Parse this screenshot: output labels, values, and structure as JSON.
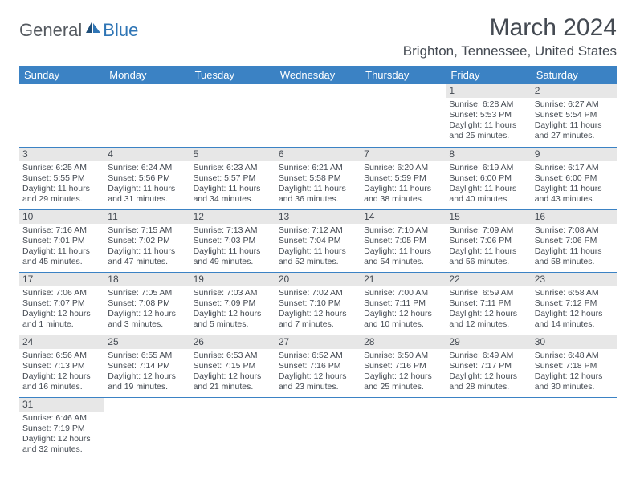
{
  "logo": {
    "word1": "General",
    "word2": "Blue"
  },
  "title": "March 2024",
  "location": "Brighton, Tennessee, United States",
  "colors": {
    "header_bg": "#3b82c4",
    "header_text": "#ffffff",
    "daynum_bg": "#e7e7e7",
    "text": "#444a52",
    "rule": "#3b82c4",
    "logo_blue": "#2f75b5",
    "logo_gray": "#555a60"
  },
  "typography": {
    "title_fontsize": 30,
    "location_fontsize": 17,
    "weekday_fontsize": 13,
    "cell_fontsize": 10.5,
    "daynum_fontsize": 12
  },
  "weekdays": [
    "Sunday",
    "Monday",
    "Tuesday",
    "Wednesday",
    "Thursday",
    "Friday",
    "Saturday"
  ],
  "weeks": [
    [
      {
        "day": "",
        "sunrise": "",
        "sunset": "",
        "daylight": ""
      },
      {
        "day": "",
        "sunrise": "",
        "sunset": "",
        "daylight": ""
      },
      {
        "day": "",
        "sunrise": "",
        "sunset": "",
        "daylight": ""
      },
      {
        "day": "",
        "sunrise": "",
        "sunset": "",
        "daylight": ""
      },
      {
        "day": "",
        "sunrise": "",
        "sunset": "",
        "daylight": ""
      },
      {
        "day": "1",
        "sunrise": "Sunrise: 6:28 AM",
        "sunset": "Sunset: 5:53 PM",
        "daylight": "Daylight: 11 hours and 25 minutes."
      },
      {
        "day": "2",
        "sunrise": "Sunrise: 6:27 AM",
        "sunset": "Sunset: 5:54 PM",
        "daylight": "Daylight: 11 hours and 27 minutes."
      }
    ],
    [
      {
        "day": "3",
        "sunrise": "Sunrise: 6:25 AM",
        "sunset": "Sunset: 5:55 PM",
        "daylight": "Daylight: 11 hours and 29 minutes."
      },
      {
        "day": "4",
        "sunrise": "Sunrise: 6:24 AM",
        "sunset": "Sunset: 5:56 PM",
        "daylight": "Daylight: 11 hours and 31 minutes."
      },
      {
        "day": "5",
        "sunrise": "Sunrise: 6:23 AM",
        "sunset": "Sunset: 5:57 PM",
        "daylight": "Daylight: 11 hours and 34 minutes."
      },
      {
        "day": "6",
        "sunrise": "Sunrise: 6:21 AM",
        "sunset": "Sunset: 5:58 PM",
        "daylight": "Daylight: 11 hours and 36 minutes."
      },
      {
        "day": "7",
        "sunrise": "Sunrise: 6:20 AM",
        "sunset": "Sunset: 5:59 PM",
        "daylight": "Daylight: 11 hours and 38 minutes."
      },
      {
        "day": "8",
        "sunrise": "Sunrise: 6:19 AM",
        "sunset": "Sunset: 6:00 PM",
        "daylight": "Daylight: 11 hours and 40 minutes."
      },
      {
        "day": "9",
        "sunrise": "Sunrise: 6:17 AM",
        "sunset": "Sunset: 6:00 PM",
        "daylight": "Daylight: 11 hours and 43 minutes."
      }
    ],
    [
      {
        "day": "10",
        "sunrise": "Sunrise: 7:16 AM",
        "sunset": "Sunset: 7:01 PM",
        "daylight": "Daylight: 11 hours and 45 minutes."
      },
      {
        "day": "11",
        "sunrise": "Sunrise: 7:15 AM",
        "sunset": "Sunset: 7:02 PM",
        "daylight": "Daylight: 11 hours and 47 minutes."
      },
      {
        "day": "12",
        "sunrise": "Sunrise: 7:13 AM",
        "sunset": "Sunset: 7:03 PM",
        "daylight": "Daylight: 11 hours and 49 minutes."
      },
      {
        "day": "13",
        "sunrise": "Sunrise: 7:12 AM",
        "sunset": "Sunset: 7:04 PM",
        "daylight": "Daylight: 11 hours and 52 minutes."
      },
      {
        "day": "14",
        "sunrise": "Sunrise: 7:10 AM",
        "sunset": "Sunset: 7:05 PM",
        "daylight": "Daylight: 11 hours and 54 minutes."
      },
      {
        "day": "15",
        "sunrise": "Sunrise: 7:09 AM",
        "sunset": "Sunset: 7:06 PM",
        "daylight": "Daylight: 11 hours and 56 minutes."
      },
      {
        "day": "16",
        "sunrise": "Sunrise: 7:08 AM",
        "sunset": "Sunset: 7:06 PM",
        "daylight": "Daylight: 11 hours and 58 minutes."
      }
    ],
    [
      {
        "day": "17",
        "sunrise": "Sunrise: 7:06 AM",
        "sunset": "Sunset: 7:07 PM",
        "daylight": "Daylight: 12 hours and 1 minute."
      },
      {
        "day": "18",
        "sunrise": "Sunrise: 7:05 AM",
        "sunset": "Sunset: 7:08 PM",
        "daylight": "Daylight: 12 hours and 3 minutes."
      },
      {
        "day": "19",
        "sunrise": "Sunrise: 7:03 AM",
        "sunset": "Sunset: 7:09 PM",
        "daylight": "Daylight: 12 hours and 5 minutes."
      },
      {
        "day": "20",
        "sunrise": "Sunrise: 7:02 AM",
        "sunset": "Sunset: 7:10 PM",
        "daylight": "Daylight: 12 hours and 7 minutes."
      },
      {
        "day": "21",
        "sunrise": "Sunrise: 7:00 AM",
        "sunset": "Sunset: 7:11 PM",
        "daylight": "Daylight: 12 hours and 10 minutes."
      },
      {
        "day": "22",
        "sunrise": "Sunrise: 6:59 AM",
        "sunset": "Sunset: 7:11 PM",
        "daylight": "Daylight: 12 hours and 12 minutes."
      },
      {
        "day": "23",
        "sunrise": "Sunrise: 6:58 AM",
        "sunset": "Sunset: 7:12 PM",
        "daylight": "Daylight: 12 hours and 14 minutes."
      }
    ],
    [
      {
        "day": "24",
        "sunrise": "Sunrise: 6:56 AM",
        "sunset": "Sunset: 7:13 PM",
        "daylight": "Daylight: 12 hours and 16 minutes."
      },
      {
        "day": "25",
        "sunrise": "Sunrise: 6:55 AM",
        "sunset": "Sunset: 7:14 PM",
        "daylight": "Daylight: 12 hours and 19 minutes."
      },
      {
        "day": "26",
        "sunrise": "Sunrise: 6:53 AM",
        "sunset": "Sunset: 7:15 PM",
        "daylight": "Daylight: 12 hours and 21 minutes."
      },
      {
        "day": "27",
        "sunrise": "Sunrise: 6:52 AM",
        "sunset": "Sunset: 7:16 PM",
        "daylight": "Daylight: 12 hours and 23 minutes."
      },
      {
        "day": "28",
        "sunrise": "Sunrise: 6:50 AM",
        "sunset": "Sunset: 7:16 PM",
        "daylight": "Daylight: 12 hours and 25 minutes."
      },
      {
        "day": "29",
        "sunrise": "Sunrise: 6:49 AM",
        "sunset": "Sunset: 7:17 PM",
        "daylight": "Daylight: 12 hours and 28 minutes."
      },
      {
        "day": "30",
        "sunrise": "Sunrise: 6:48 AM",
        "sunset": "Sunset: 7:18 PM",
        "daylight": "Daylight: 12 hours and 30 minutes."
      }
    ],
    [
      {
        "day": "31",
        "sunrise": "Sunrise: 6:46 AM",
        "sunset": "Sunset: 7:19 PM",
        "daylight": "Daylight: 12 hours and 32 minutes."
      },
      {
        "day": "",
        "sunrise": "",
        "sunset": "",
        "daylight": ""
      },
      {
        "day": "",
        "sunrise": "",
        "sunset": "",
        "daylight": ""
      },
      {
        "day": "",
        "sunrise": "",
        "sunset": "",
        "daylight": ""
      },
      {
        "day": "",
        "sunrise": "",
        "sunset": "",
        "daylight": ""
      },
      {
        "day": "",
        "sunrise": "",
        "sunset": "",
        "daylight": ""
      },
      {
        "day": "",
        "sunrise": "",
        "sunset": "",
        "daylight": ""
      }
    ]
  ]
}
